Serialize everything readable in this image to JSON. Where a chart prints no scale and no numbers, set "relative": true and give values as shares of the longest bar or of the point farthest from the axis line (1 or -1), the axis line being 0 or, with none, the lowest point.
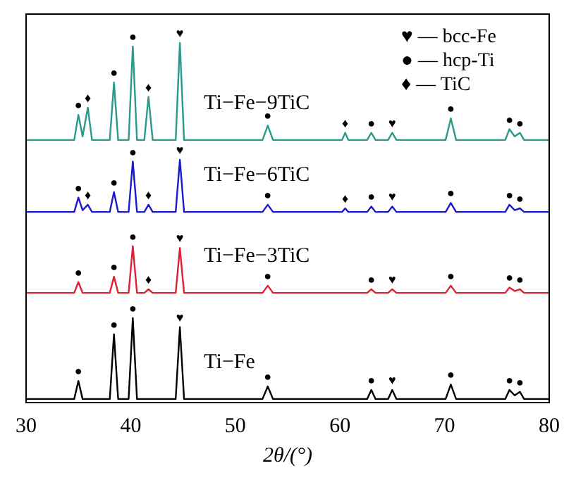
{
  "chart_data": {
    "type": "line",
    "relative": true,
    "xlabel": "2θ/(°)",
    "xlim": [
      30,
      80
    ],
    "xticks": [
      30,
      40,
      50,
      60,
      70,
      80
    ],
    "tick_labels": "x",
    "grid": false,
    "legend": false,
    "marker": "none",
    "x": [
      30,
      34.6,
      35.0,
      35.4,
      35.9,
      36.3,
      38.0,
      38.4,
      38.8,
      39.8,
      40.2,
      40.6,
      41.3,
      41.7,
      42.1,
      44.3,
      44.7,
      45.1,
      52.6,
      53.1,
      53.6,
      60.2,
      60.5,
      60.8,
      62.6,
      63.0,
      63.4,
      64.6,
      65.0,
      65.4,
      70.1,
      70.6,
      71.1,
      75.8,
      76.2,
      76.7,
      77.2,
      77.6,
      80
    ],
    "series": [
      {
        "name": "Ti−Fe−9TiC",
        "color": "#2a9a8a",
        "values": [
          0.73,
          0.73,
          0.8,
          0.74,
          0.82,
          0.73,
          0.73,
          0.89,
          0.73,
          0.73,
          0.99,
          0.73,
          0.73,
          0.85,
          0.73,
          0.73,
          1.0,
          0.73,
          0.73,
          0.77,
          0.73,
          0.73,
          0.75,
          0.73,
          0.73,
          0.75,
          0.73,
          0.73,
          0.75,
          0.73,
          0.73,
          0.79,
          0.73,
          0.73,
          0.76,
          0.74,
          0.75,
          0.73,
          0.73
        ]
      },
      {
        "name": "Ti−Fe−6TiC",
        "color": "#1a1acc",
        "values": [
          0.53,
          0.53,
          0.57,
          0.535,
          0.55,
          0.53,
          0.53,
          0.585,
          0.53,
          0.53,
          0.67,
          0.53,
          0.53,
          0.55,
          0.53,
          0.53,
          0.675,
          0.53,
          0.53,
          0.55,
          0.53,
          0.53,
          0.54,
          0.53,
          0.53,
          0.545,
          0.53,
          0.53,
          0.545,
          0.53,
          0.53,
          0.555,
          0.53,
          0.53,
          0.55,
          0.535,
          0.54,
          0.53,
          0.53
        ]
      },
      {
        "name": "Ti−Fe−3TiC",
        "color": "#dd2233",
        "values": [
          0.305,
          0.305,
          0.335,
          0.305,
          0.305,
          0.305,
          0.305,
          0.35,
          0.305,
          0.305,
          0.435,
          0.305,
          0.305,
          0.315,
          0.305,
          0.305,
          0.43,
          0.305,
          0.305,
          0.325,
          0.305,
          0.305,
          0.305,
          0.305,
          0.305,
          0.315,
          0.305,
          0.305,
          0.315,
          0.305,
          0.305,
          0.325,
          0.305,
          0.305,
          0.32,
          0.31,
          0.315,
          0.305,
          0.305
        ]
      },
      {
        "name": "Ti−Fe",
        "color": "#000000",
        "values": [
          0.01,
          0.01,
          0.06,
          0.01,
          0.01,
          0.01,
          0.01,
          0.19,
          0.01,
          0.01,
          0.235,
          0.01,
          0.01,
          0.01,
          0.01,
          0.01,
          0.21,
          0.01,
          0.01,
          0.045,
          0.01,
          0.01,
          0.01,
          0.01,
          0.01,
          0.035,
          0.01,
          0.01,
          0.035,
          0.01,
          0.01,
          0.05,
          0.01,
          0.01,
          0.035,
          0.02,
          0.03,
          0.01,
          0.01
        ]
      }
    ],
    "annotations": [
      "♥ — bcc-Fe",
      "● — hcp-Ti",
      "♦ — TiC",
      {
        "text": "●",
        "x": 35.0,
        "y": 0.8
      },
      {
        "text": "♦",
        "x": 35.9,
        "y": 0.82
      },
      {
        "text": "●",
        "x": 38.4,
        "y": 0.89
      },
      {
        "text": "●",
        "x": 40.2,
        "y": 0.99
      },
      {
        "text": "♦",
        "x": 41.7,
        "y": 0.85
      },
      {
        "text": "♥",
        "x": 44.7,
        "y": 1.0
      },
      {
        "text": "●",
        "x": 53.1,
        "y": 0.77
      },
      {
        "text": "♦",
        "x": 60.5,
        "y": 0.75
      },
      {
        "text": "●",
        "x": 63.0,
        "y": 0.75
      },
      {
        "text": "♥",
        "x": 65.0,
        "y": 0.75
      },
      {
        "text": "●",
        "x": 70.6,
        "y": 0.79
      },
      {
        "text": "●",
        "x": 76.2,
        "y": 0.76
      },
      {
        "text": "●",
        "x": 77.2,
        "y": 0.75
      },
      {
        "text": "●",
        "x": 35.0,
        "y": 0.57
      },
      {
        "text": "♦",
        "x": 35.9,
        "y": 0.55
      },
      {
        "text": "●",
        "x": 38.4,
        "y": 0.585
      },
      {
        "text": "●",
        "x": 40.2,
        "y": 0.67
      },
      {
        "text": "♦",
        "x": 41.7,
        "y": 0.55
      },
      {
        "text": "♥",
        "x": 44.7,
        "y": 0.675
      },
      {
        "text": "●",
        "x": 53.1,
        "y": 0.55
      },
      {
        "text": "♦",
        "x": 60.5,
        "y": 0.54
      },
      {
        "text": "●",
        "x": 63.0,
        "y": 0.545
      },
      {
        "text": "♥",
        "x": 65.0,
        "y": 0.545
      },
      {
        "text": "●",
        "x": 70.6,
        "y": 0.555
      },
      {
        "text": "●",
        "x": 76.2,
        "y": 0.55
      },
      {
        "text": "●",
        "x": 77.2,
        "y": 0.54
      },
      {
        "text": "●",
        "x": 35.0,
        "y": 0.335
      },
      {
        "text": "●",
        "x": 38.4,
        "y": 0.35
      },
      {
        "text": "●",
        "x": 40.2,
        "y": 0.435
      },
      {
        "text": "♦",
        "x": 41.7,
        "y": 0.315
      },
      {
        "text": "♥",
        "x": 44.7,
        "y": 0.43
      },
      {
        "text": "●",
        "x": 53.1,
        "y": 0.325
      },
      {
        "text": "●",
        "x": 63.0,
        "y": 0.315
      },
      {
        "text": "♥",
        "x": 65.0,
        "y": 0.315
      },
      {
        "text": "●",
        "x": 70.6,
        "y": 0.325
      },
      {
        "text": "●",
        "x": 76.2,
        "y": 0.32
      },
      {
        "text": "●",
        "x": 77.2,
        "y": 0.315
      },
      {
        "text": "●",
        "x": 35.0,
        "y": 0.06
      },
      {
        "text": "●",
        "x": 38.4,
        "y": 0.19
      },
      {
        "text": "●",
        "x": 40.2,
        "y": 0.235
      },
      {
        "text": "♥",
        "x": 44.7,
        "y": 0.21
      },
      {
        "text": "●",
        "x": 53.1,
        "y": 0.045
      },
      {
        "text": "●",
        "x": 63.0,
        "y": 0.035
      },
      {
        "text": "♥",
        "x": 65.0,
        "y": 0.035
      },
      {
        "text": "●",
        "x": 70.6,
        "y": 0.05
      },
      {
        "text": "●",
        "x": 76.2,
        "y": 0.035
      },
      {
        "text": "●",
        "x": 77.2,
        "y": 0.03
      }
    ]
  }
}
